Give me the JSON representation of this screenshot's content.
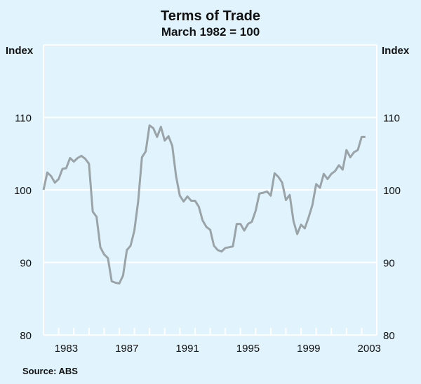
{
  "chart_data": {
    "type": "line",
    "title": "Terms of Trade",
    "subtitle": "March 1982 = 100",
    "ylabel_left": "Index",
    "ylabel_right": "Index",
    "source": "Source: ABS",
    "ylim": [
      80,
      120
    ],
    "yticks": [
      80,
      90,
      100,
      110
    ],
    "xlim": [
      1982,
      2004
    ],
    "xtick_labels": [
      "1983",
      "1987",
      "1991",
      "1995",
      "1999",
      "2003"
    ],
    "grid": true,
    "frequency": "quarterly",
    "x_start": 1982.0,
    "series": [
      {
        "name": "Terms of Trade",
        "color": "#9aa4a8",
        "values": [
          100.0,
          102.4,
          101.9,
          101.0,
          101.5,
          102.9,
          103.0,
          104.4,
          103.9,
          104.4,
          104.7,
          104.3,
          103.6,
          97.0,
          96.3,
          92.1,
          91.1,
          90.6,
          87.4,
          87.2,
          87.1,
          88.2,
          91.7,
          92.3,
          94.4,
          98.4,
          104.5,
          105.3,
          108.9,
          108.5,
          107.3,
          108.7,
          106.8,
          107.4,
          106.1,
          101.9,
          99.2,
          98.4,
          99.1,
          98.5,
          98.5,
          97.7,
          95.8,
          94.9,
          94.5,
          92.3,
          91.7,
          91.5,
          92.0,
          92.1,
          92.2,
          95.3,
          95.3,
          94.4,
          95.3,
          95.6,
          97.1,
          99.5,
          99.6,
          99.8,
          99.2,
          102.3,
          101.8,
          101.0,
          98.6,
          99.3,
          95.7,
          93.9,
          95.2,
          94.7,
          96.2,
          97.9,
          100.8,
          100.3,
          102.2,
          101.5,
          102.2,
          102.6,
          103.4,
          102.8,
          105.5,
          104.5,
          105.2,
          105.5,
          107.3,
          107.3
        ]
      }
    ]
  }
}
